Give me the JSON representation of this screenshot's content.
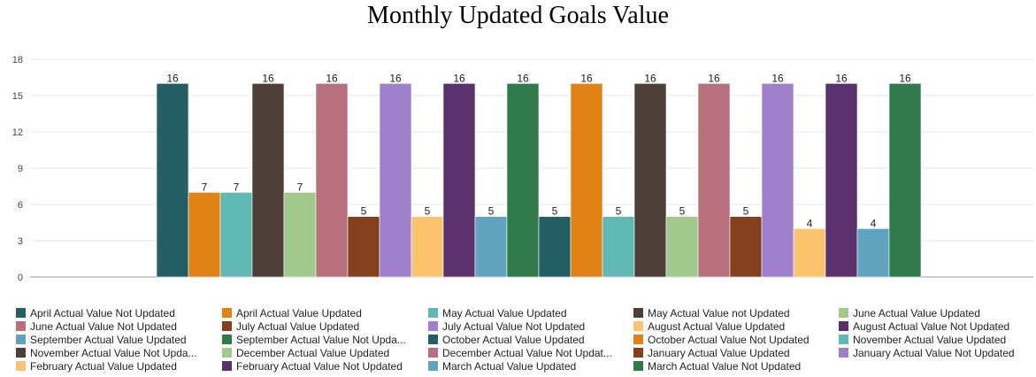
{
  "chart_data": {
    "type": "bar",
    "title": "Monthly Updated Goals Value",
    "xlabel": "",
    "ylabel": "",
    "ylim": [
      0,
      18
    ],
    "yticks": [
      0,
      3,
      6,
      9,
      12,
      15,
      18
    ],
    "grid": true,
    "legend_position": "bottom",
    "series": [
      {
        "name": "April Actual Value Not Updated",
        "values": [
          16
        ],
        "color": "#245f66"
      },
      {
        "name": "April Actual Value Updated",
        "values": [
          7
        ],
        "color": "#e08214"
      },
      {
        "name": "May Actual Value Updated",
        "values": [
          7
        ],
        "color": "#5fb8b3"
      },
      {
        "name": "May Actual Value not Updated",
        "values": [
          16
        ],
        "color": "#4d4038"
      },
      {
        "name": "June Actual Value Updated",
        "values": [
          7
        ],
        "color": "#a1c98c"
      },
      {
        "name": "June Actual Value Not Updated",
        "values": [
          16
        ],
        "color": "#b8707e"
      },
      {
        "name": "July Actual Value Updated",
        "values": [
          5
        ],
        "color": "#84401d"
      },
      {
        "name": "July Actual Value Not Updated",
        "values": [
          16
        ],
        "color": "#9e80cc"
      },
      {
        "name": "August Actual Value Updated",
        "values": [
          5
        ],
        "color": "#fbc36b"
      },
      {
        "name": "August Actual Value Not Updated",
        "values": [
          16
        ],
        "color": "#5a306d"
      },
      {
        "name": "September Actual Value Updated",
        "values": [
          5
        ],
        "color": "#60a3bf"
      },
      {
        "name": "September Actual Value Not Upda...",
        "values": [
          16
        ],
        "color": "#307a4a"
      },
      {
        "name": "October Actual Value Updated",
        "values": [
          5
        ],
        "color": "#245f66"
      },
      {
        "name": "October Actual Value Not Updated",
        "values": [
          16
        ],
        "color": "#e08214"
      },
      {
        "name": "November Actual Value Updated",
        "values": [
          5
        ],
        "color": "#5fb8b3"
      },
      {
        "name": "November Actual Value Not Upda...",
        "values": [
          16
        ],
        "color": "#4d4038"
      },
      {
        "name": "December Actual Value Updated",
        "values": [
          5
        ],
        "color": "#a1c98c"
      },
      {
        "name": "December Actual Value Not Updat...",
        "values": [
          16
        ],
        "color": "#b8707e"
      },
      {
        "name": "January Actual Value Updated",
        "values": [
          5
        ],
        "color": "#84401d"
      },
      {
        "name": "January Actual Value Not Updated",
        "values": [
          16
        ],
        "color": "#9e80cc"
      },
      {
        "name": "February Actual Value Updated",
        "values": [
          4
        ],
        "color": "#fbc36b"
      },
      {
        "name": "February Actual Value Not Updated",
        "values": [
          16
        ],
        "color": "#5a306d"
      },
      {
        "name": "March Actual Value Updated",
        "values": [
          4
        ],
        "color": "#60a3bf"
      },
      {
        "name": "March Actual Value Not Updated",
        "values": [
          16
        ],
        "color": "#307a4a"
      }
    ]
  }
}
